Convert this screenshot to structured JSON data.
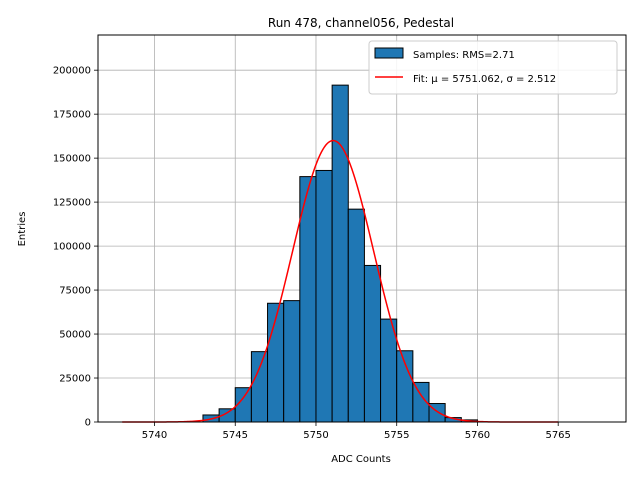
{
  "chart_data": {
    "type": "bar",
    "title": "Run 478, channel056, Pedestal",
    "xlabel": "ADC Counts",
    "ylabel": "Entries",
    "xlim": [
      5736.5,
      5769.2
    ],
    "ylim": [
      0,
      220000
    ],
    "xticks": [
      5740,
      5745,
      5750,
      5755,
      5760,
      5765
    ],
    "yticks": [
      0,
      25000,
      50000,
      75000,
      100000,
      125000,
      150000,
      175000,
      200000
    ],
    "grid": true,
    "legend_position": "top-right",
    "bin_width": 1,
    "bins": [
      {
        "x": 5743,
        "value": 4000
      },
      {
        "x": 5744,
        "value": 7500
      },
      {
        "x": 5745,
        "value": 19500
      },
      {
        "x": 5746,
        "value": 40000
      },
      {
        "x": 5747,
        "value": 67500
      },
      {
        "x": 5748,
        "value": 69000
      },
      {
        "x": 5749,
        "value": 139500
      },
      {
        "x": 5750,
        "value": 143000
      },
      {
        "x": 5751,
        "value": 191500
      },
      {
        "x": 5752,
        "value": 121000
      },
      {
        "x": 5753,
        "value": 89000
      },
      {
        "x": 5754,
        "value": 58500
      },
      {
        "x": 5755,
        "value": 40500
      },
      {
        "x": 5756,
        "value": 22500
      },
      {
        "x": 5757,
        "value": 10500
      },
      {
        "x": 5758,
        "value": 2500
      },
      {
        "x": 5759,
        "value": 1200
      }
    ],
    "fit": {
      "mu": 5751.062,
      "sigma": 2.512,
      "amplitude": 160000,
      "x_range": [
        5738,
        5765
      ]
    },
    "legend": [
      {
        "label": "Samples: RMS=2.71",
        "kind": "patch",
        "color": "#1f77b4"
      },
      {
        "label": "Fit: μ = 5751.062, σ = 2.512",
        "kind": "line",
        "color": "#ff0000"
      }
    ]
  }
}
